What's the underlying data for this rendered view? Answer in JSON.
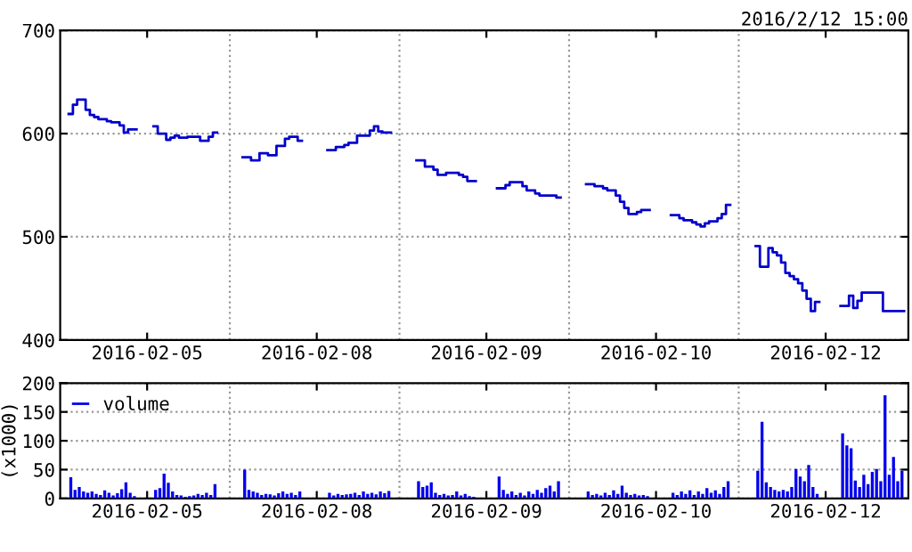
{
  "chart_data": [
    {
      "type": "step",
      "subtitle": "2016/2/12 15:00",
      "color": "#0000cc",
      "grid": true,
      "categories": [
        null,
        null,
        null,
        null,
        null,
        null,
        null,
        null,
        null,
        null,
        null,
        null,
        null,
        null,
        null,
        null,
        null,
        null,
        null,
        null,
        "2016-02-05",
        null,
        null,
        null,
        null,
        null,
        null,
        null,
        null,
        null,
        null,
        null,
        null,
        null,
        null,
        null,
        null,
        null,
        null,
        null,
        null,
        null,
        null,
        null,
        null,
        null,
        null,
        null,
        null,
        null,
        null,
        null,
        null,
        null,
        null,
        null,
        null,
        null,
        null,
        null,
        "2016-02-08",
        null,
        null,
        null,
        null,
        null,
        null,
        null,
        null,
        null,
        null,
        null,
        null,
        null,
        null,
        null,
        null,
        null,
        null,
        null,
        null,
        null,
        null,
        null,
        null,
        null,
        null,
        null,
        null,
        null,
        null,
        null,
        null,
        null,
        null,
        null,
        null,
        null,
        null,
        null,
        "2016-02-09",
        null,
        null,
        null,
        null,
        null,
        null,
        null,
        null,
        null,
        null,
        null,
        null,
        null,
        null,
        null,
        null,
        null,
        null,
        null,
        null,
        null,
        null,
        null,
        null,
        null,
        null,
        null,
        null,
        null,
        null,
        null,
        null,
        null,
        null,
        null,
        null,
        null,
        null,
        null,
        "2016-02-10",
        null,
        null,
        null,
        null,
        null,
        null,
        null,
        null,
        null,
        null,
        null,
        null,
        null,
        null,
        null,
        null,
        null,
        null,
        null,
        null,
        null,
        null,
        null,
        null,
        null,
        null,
        null,
        null,
        null,
        null,
        null,
        null,
        null,
        null,
        null,
        null,
        null,
        null,
        null,
        "2016-02-12",
        null,
        null,
        null,
        null,
        null,
        null,
        null,
        null,
        null,
        null,
        null,
        null,
        null,
        null,
        null,
        null,
        null,
        null,
        null
      ],
      "ylim": [
        400,
        700
      ],
      "yticks": [
        400,
        500,
        600,
        700
      ],
      "values": [
        null,
        null,
        619,
        628,
        633,
        633,
        623,
        618,
        616,
        614,
        614,
        612,
        611,
        611,
        608,
        601,
        604,
        604,
        null,
        null,
        null,
        null,
        607,
        600,
        600,
        594,
        596,
        598,
        596,
        596,
        597,
        597,
        597,
        593,
        593,
        597,
        601,
        null,
        null,
        null,
        null,
        null,
        null,
        577,
        577,
        574,
        574,
        581,
        581,
        579,
        579,
        588,
        588,
        595,
        597,
        597,
        593,
        null,
        null,
        null,
        null,
        null,
        null,
        584,
        584,
        587,
        587,
        589,
        591,
        591,
        598,
        598,
        598,
        603,
        607,
        602,
        601,
        601,
        null,
        null,
        null,
        null,
        null,
        null,
        574,
        574,
        568,
        568,
        565,
        560,
        560,
        562,
        562,
        562,
        560,
        558,
        554,
        554,
        null,
        null,
        null,
        null,
        null,
        547,
        547,
        550,
        553,
        553,
        553,
        549,
        545,
        545,
        542,
        540,
        540,
        540,
        540,
        538,
        null,
        null,
        null,
        null,
        null,
        null,
        551,
        551,
        549,
        549,
        547,
        545,
        545,
        540,
        534,
        528,
        522,
        522,
        524,
        526,
        526,
        null,
        null,
        null,
        null,
        null,
        521,
        521,
        518,
        516,
        516,
        514,
        512,
        510,
        513,
        515,
        515,
        518,
        522,
        531,
        null,
        null,
        null,
        null,
        null,
        null,
        491,
        471,
        471,
        489,
        485,
        482,
        475,
        465,
        462,
        459,
        455,
        448,
        440,
        428,
        437,
        null,
        null,
        null,
        null,
        null,
        433,
        433,
        443,
        431,
        438,
        446,
        446,
        446,
        446,
        446,
        428,
        428,
        428,
        428,
        428,
        null
      ]
    },
    {
      "type": "bar",
      "ylabel": "(x1000)",
      "grid": true,
      "legend": "top left",
      "categories": [
        null,
        null,
        null,
        null,
        null,
        null,
        null,
        null,
        null,
        null,
        null,
        null,
        null,
        null,
        null,
        null,
        null,
        null,
        null,
        null,
        "2016-02-05",
        null,
        null,
        null,
        null,
        null,
        null,
        null,
        null,
        null,
        null,
        null,
        null,
        null,
        null,
        null,
        null,
        null,
        null,
        null,
        null,
        null,
        null,
        null,
        null,
        null,
        null,
        null,
        null,
        null,
        null,
        null,
        null,
        null,
        null,
        null,
        null,
        null,
        null,
        null,
        "2016-02-08",
        null,
        null,
        null,
        null,
        null,
        null,
        null,
        null,
        null,
        null,
        null,
        null,
        null,
        null,
        null,
        null,
        null,
        null,
        null,
        null,
        null,
        null,
        null,
        null,
        null,
        null,
        null,
        null,
        null,
        null,
        null,
        null,
        null,
        null,
        null,
        null,
        null,
        null,
        null,
        "2016-02-09",
        null,
        null,
        null,
        null,
        null,
        null,
        null,
        null,
        null,
        null,
        null,
        null,
        null,
        null,
        null,
        null,
        null,
        null,
        null,
        null,
        null,
        null,
        null,
        null,
        null,
        null,
        null,
        null,
        null,
        null,
        null,
        null,
        null,
        null,
        null,
        null,
        null,
        null,
        null,
        "2016-02-10",
        null,
        null,
        null,
        null,
        null,
        null,
        null,
        null,
        null,
        null,
        null,
        null,
        null,
        null,
        null,
        null,
        null,
        null,
        null,
        null,
        null,
        null,
        null,
        null,
        null,
        null,
        null,
        null,
        null,
        null,
        null,
        null,
        null,
        null,
        null,
        null,
        null,
        null,
        null,
        "2016-02-12",
        null,
        null,
        null,
        null,
        null,
        null,
        null,
        null,
        null,
        null,
        null,
        null,
        null,
        null,
        null,
        null,
        null,
        null,
        null
      ],
      "ylim": [
        0,
        200
      ],
      "yticks": [
        0,
        50,
        100,
        150,
        200
      ],
      "series": [
        {
          "name": "volume",
          "color": "#0000ee",
          "values": [
            null,
            null,
            37,
            15,
            20,
            12,
            10,
            12,
            8,
            6,
            14,
            10,
            5,
            9,
            16,
            28,
            10,
            4,
            null,
            null,
            null,
            null,
            15,
            18,
            43,
            27,
            12,
            6,
            5,
            3,
            4,
            5,
            8,
            6,
            10,
            6,
            25,
            null,
            null,
            null,
            null,
            null,
            null,
            50,
            15,
            12,
            10,
            6,
            8,
            7,
            5,
            9,
            12,
            8,
            10,
            6,
            12,
            null,
            null,
            null,
            null,
            null,
            null,
            10,
            5,
            8,
            6,
            7,
            8,
            10,
            6,
            12,
            8,
            10,
            7,
            12,
            9,
            13,
            null,
            null,
            null,
            null,
            null,
            null,
            30,
            20,
            22,
            28,
            10,
            6,
            8,
            5,
            6,
            12,
            5,
            8,
            4,
            3,
            null,
            null,
            null,
            null,
            null,
            38,
            15,
            8,
            12,
            6,
            10,
            5,
            12,
            8,
            15,
            10,
            18,
            22,
            12,
            30,
            null,
            null,
            null,
            null,
            null,
            null,
            12,
            6,
            8,
            5,
            10,
            6,
            14,
            8,
            22,
            10,
            6,
            8,
            5,
            6,
            4,
            null,
            null,
            null,
            null,
            null,
            10,
            6,
            12,
            8,
            14,
            6,
            12,
            8,
            18,
            10,
            14,
            8,
            20,
            30,
            null,
            null,
            null,
            null,
            null,
            null,
            48,
            133,
            28,
            20,
            15,
            12,
            15,
            12,
            20,
            51,
            38,
            30,
            58,
            20,
            8,
            null,
            null,
            null,
            null,
            null,
            113,
            92,
            87,
            31,
            20,
            41,
            25,
            46,
            51,
            30,
            179,
            41,
            72,
            30,
            48,
            null
          ]
        }
      ]
    }
  ]
}
